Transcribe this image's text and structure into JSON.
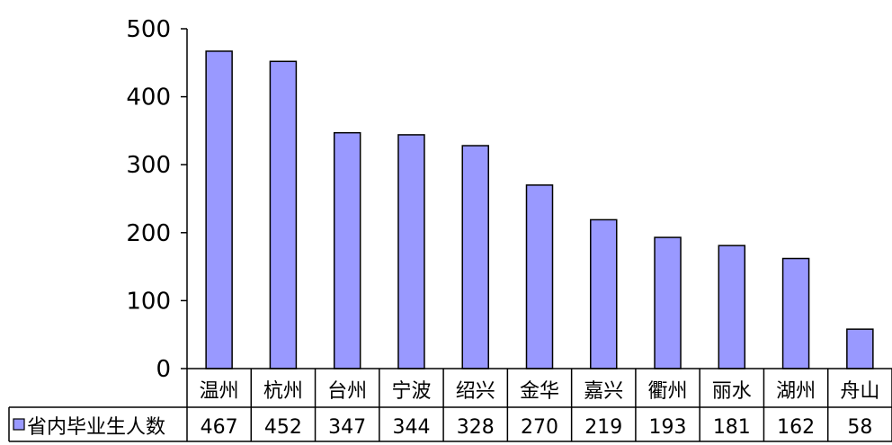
{
  "chart_data": {
    "type": "bar",
    "categories": [
      "温州",
      "杭州",
      "台州",
      "宁波",
      "绍兴",
      "金华",
      "嘉兴",
      "衢州",
      "丽水",
      "湖州",
      "舟山"
    ],
    "series": [
      {
        "name": "省内毕业生人数",
        "values": [
          467,
          452,
          347,
          344,
          328,
          270,
          219,
          193,
          181,
          162,
          58
        ]
      }
    ],
    "ylim": [
      0,
      500
    ],
    "yticks": [
      0,
      100,
      200,
      300,
      400,
      500
    ],
    "grid": false,
    "legend": "data-table-left",
    "colors": {
      "bar": "#9999ff",
      "bar_border": "#000000"
    }
  }
}
